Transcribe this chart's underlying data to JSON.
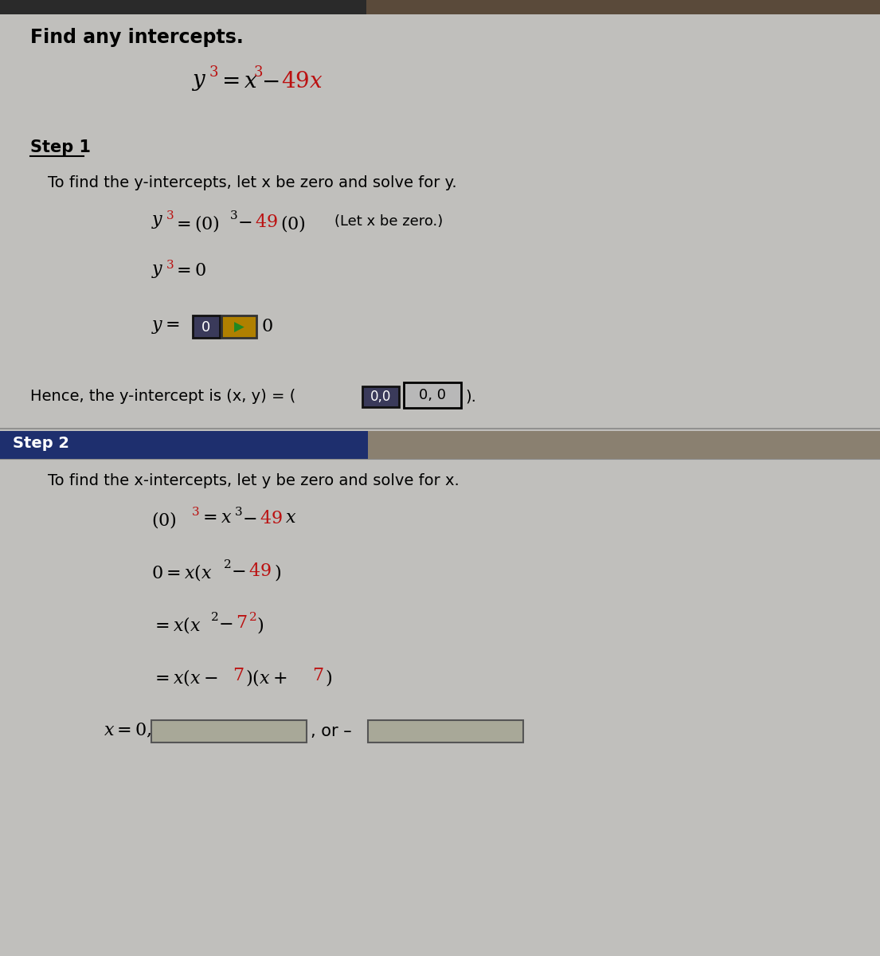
{
  "bg_color": "#c0bfbc",
  "top_bar_color": "#2a2a2a",
  "top_bar_color2": "#4a3a2a",
  "step2_header_bg": "#1e2f6e",
  "red_color": "#bb1111",
  "title": "Find any intercepts.",
  "step1_label": "Step 1",
  "step2_label": "Step 2",
  "step1_desc": "To find the y-intercepts, let x be zero and solve for y.",
  "step2_desc": "To find the x-intercepts, let y be zero and solve for x.",
  "box1_bg": "#3a3a5a",
  "box1_text_color": "#ffffff",
  "gold_box_bg": "#b08000",
  "box2_bg": "#a0a090",
  "box2_text_color": "#000000",
  "hence_box1_bg": "#3a3a5a",
  "hence_box1_tc": "#ffffff",
  "hence_box2_bg": "#b8b8b8",
  "hence_box2_tc": "#000000",
  "input_box_bg": "#a8a898",
  "input_box_border": "#555555",
  "sep_line_color": "#888888",
  "white": "#ffffff"
}
